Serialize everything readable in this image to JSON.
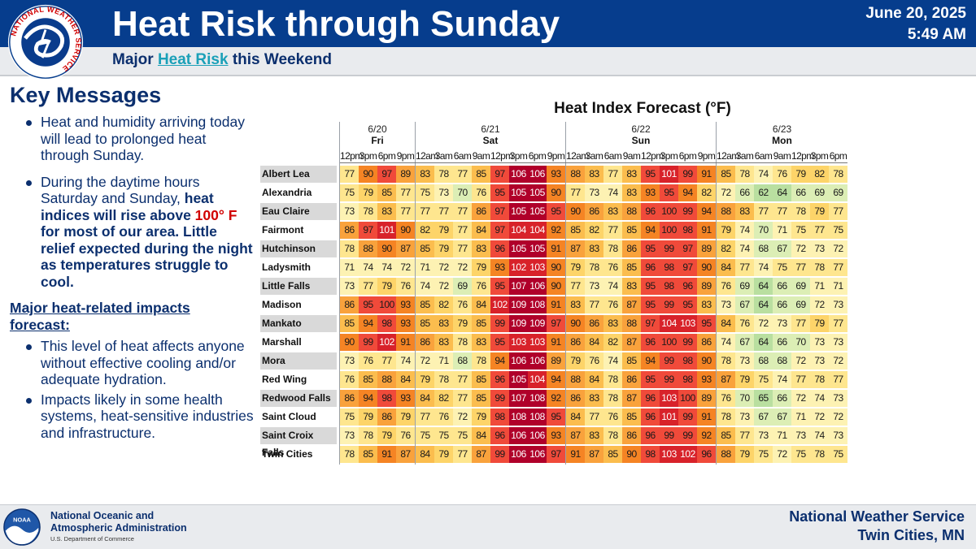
{
  "header": {
    "title": "Heat Risk through Sunday",
    "date": "June 20, 2025",
    "time": "5:49 AM",
    "subtitle_pre": "Major ",
    "subtitle_link": "Heat Risk",
    "subtitle_post": " this Weekend",
    "logo_text": "NATIONAL WEATHER SERVICE"
  },
  "key_messages": {
    "title": "Key Messages",
    "b1": "Heat and humidity arriving today will lead to prolonged heat through Sunday.",
    "b2_pre": "During the daytime hours Saturday and Sunday, ",
    "b2_bold1": "heat indices will rise above ",
    "b2_red": "100° F",
    "b2_bold2": " for most of our area. Little relief expected during the night as temperatures struggle to cool.",
    "impacts_heading": "Major heat-related impacts forecast:",
    "impact1": "This level of heat affects anyone without effective cooling and/or adequate hydration.",
    "impact2": "Impacts likely in some health systems, heat-sensitive industries and infrastructure."
  },
  "chart_data": {
    "type": "table",
    "title": "Heat Index Forecast (°F)",
    "days": [
      {
        "date": "6/20",
        "day": "Fri",
        "hours": [
          "12pm",
          "3pm",
          "6pm",
          "9pm"
        ]
      },
      {
        "date": "6/21",
        "day": "Sat",
        "hours": [
          "12am",
          "3am",
          "6am",
          "9am",
          "12pm",
          "3pm",
          "6pm",
          "9pm"
        ]
      },
      {
        "date": "6/22",
        "day": "Sun",
        "hours": [
          "12am",
          "3am",
          "6am",
          "9am",
          "12pm",
          "3pm",
          "6pm",
          "9pm"
        ]
      },
      {
        "date": "6/23",
        "day": "Mon",
        "hours": [
          "12am",
          "3am",
          "6am",
          "9am",
          "12pm",
          "3pm",
          "6pm"
        ]
      }
    ],
    "rows": [
      {
        "city": "Albert Lea",
        "values": [
          77,
          90,
          97,
          89,
          83,
          78,
          77,
          85,
          97,
          106,
          106,
          93,
          88,
          83,
          77,
          83,
          95,
          101,
          99,
          91,
          85,
          78,
          74,
          76,
          79,
          82,
          78
        ]
      },
      {
        "city": "Alexandria",
        "values": [
          75,
          79,
          85,
          77,
          75,
          73,
          70,
          76,
          95,
          105,
          105,
          90,
          77,
          73,
          74,
          83,
          93,
          95,
          94,
          82,
          72,
          66,
          62,
          64,
          66,
          69,
          69
        ]
      },
      {
        "city": "Eau Claire",
        "values": [
          73,
          78,
          83,
          77,
          77,
          77,
          77,
          86,
          97,
          105,
          105,
          95,
          90,
          86,
          83,
          88,
          96,
          100,
          99,
          94,
          88,
          83,
          77,
          77,
          78,
          79,
          77
        ]
      },
      {
        "city": "Fairmont",
        "values": [
          86,
          97,
          101,
          90,
          82,
          79,
          77,
          84,
          97,
          104,
          104,
          92,
          85,
          82,
          77,
          85,
          94,
          100,
          98,
          91,
          79,
          74,
          70,
          71,
          75,
          77,
          75
        ]
      },
      {
        "city": "Hutchinson",
        "values": [
          78,
          88,
          90,
          87,
          85,
          79,
          77,
          83,
          96,
          105,
          105,
          91,
          87,
          83,
          78,
          86,
          95,
          99,
          97,
          89,
          82,
          74,
          68,
          67,
          72,
          73,
          72
        ]
      },
      {
        "city": "Ladysmith",
        "values": [
          71,
          74,
          74,
          72,
          71,
          72,
          72,
          79,
          93,
          102,
          103,
          90,
          79,
          78,
          76,
          85,
          96,
          98,
          97,
          90,
          84,
          77,
          74,
          75,
          77,
          78,
          77
        ]
      },
      {
        "city": "Little Falls",
        "values": [
          73,
          77,
          79,
          76,
          74,
          72,
          69,
          76,
          95,
          107,
          106,
          90,
          77,
          73,
          74,
          83,
          95,
          98,
          96,
          89,
          76,
          69,
          64,
          66,
          69,
          71,
          71
        ]
      },
      {
        "city": "Madison",
        "values": [
          86,
          95,
          100,
          93,
          85,
          82,
          76,
          84,
          102,
          109,
          108,
          91,
          83,
          77,
          76,
          87,
          95,
          99,
          95,
          83,
          73,
          67,
          64,
          66,
          69,
          72,
          73
        ]
      },
      {
        "city": "Mankato",
        "values": [
          85,
          94,
          98,
          93,
          85,
          83,
          79,
          85,
          99,
          109,
          109,
          97,
          90,
          86,
          83,
          88,
          97,
          104,
          103,
          95,
          84,
          76,
          72,
          73,
          77,
          79,
          77
        ]
      },
      {
        "city": "Marshall",
        "values": [
          90,
          99,
          102,
          91,
          86,
          83,
          78,
          83,
          95,
          103,
          103,
          91,
          86,
          84,
          82,
          87,
          96,
          100,
          99,
          86,
          74,
          67,
          64,
          66,
          70,
          73,
          73
        ]
      },
      {
        "city": "Mora",
        "values": [
          73,
          76,
          77,
          74,
          72,
          71,
          68,
          78,
          94,
          106,
          106,
          89,
          79,
          76,
          74,
          85,
          94,
          99,
          98,
          90,
          78,
          73,
          68,
          68,
          72,
          73,
          72
        ]
      },
      {
        "city": "Red Wing",
        "values": [
          76,
          85,
          88,
          84,
          79,
          78,
          77,
          85,
          96,
          105,
          104,
          94,
          88,
          84,
          78,
          86,
          95,
          99,
          98,
          93,
          87,
          79,
          75,
          74,
          77,
          78,
          77
        ]
      },
      {
        "city": "Redwood Falls",
        "values": [
          86,
          94,
          98,
          93,
          84,
          82,
          77,
          85,
          99,
          107,
          108,
          92,
          86,
          83,
          78,
          87,
          96,
          103,
          100,
          89,
          76,
          70,
          65,
          66,
          72,
          74,
          73
        ]
      },
      {
        "city": "Saint Cloud",
        "values": [
          75,
          79,
          86,
          79,
          77,
          76,
          72,
          79,
          98,
          108,
          108,
          95,
          84,
          77,
          76,
          85,
          96,
          101,
          99,
          91,
          78,
          73,
          67,
          67,
          71,
          72,
          72
        ]
      },
      {
        "city": "Saint Croix Falls",
        "values": [
          73,
          78,
          79,
          76,
          75,
          75,
          75,
          84,
          96,
          106,
          106,
          93,
          87,
          83,
          78,
          86,
          96,
          99,
          99,
          92,
          85,
          77,
          73,
          71,
          73,
          74,
          73
        ]
      },
      {
        "city": "Twin Cities",
        "values": [
          78,
          85,
          91,
          87,
          84,
          79,
          77,
          87,
          99,
          106,
          106,
          97,
          91,
          87,
          85,
          90,
          98,
          103,
          102,
          96,
          88,
          79,
          75,
          72,
          75,
          78,
          75
        ]
      }
    ],
    "color_scale": [
      {
        "min": 105,
        "color": "#b0002a"
      },
      {
        "min": 101,
        "color": "#d8222a"
      },
      {
        "min": 95,
        "color": "#f04a3a"
      },
      {
        "min": 90,
        "color": "#f58424"
      },
      {
        "min": 86,
        "color": "#f9a23c"
      },
      {
        "min": 83,
        "color": "#fbbd4e"
      },
      {
        "min": 79,
        "color": "#fdd469"
      },
      {
        "min": 75,
        "color": "#fee68f"
      },
      {
        "min": 71,
        "color": "#fdf2b3"
      },
      {
        "min": 66,
        "color": "#dceeb5"
      },
      {
        "min": 0,
        "color": "#b9dfa0"
      }
    ]
  },
  "footer": {
    "noaa_line1": "National Oceanic and",
    "noaa_line2": "Atmospheric Administration",
    "noaa_dept": "U.S. Department of Commerce",
    "noaa_logo_text": "NOAA",
    "nws_line1": "National Weather Service",
    "nws_line2": "Twin Cities, MN"
  }
}
